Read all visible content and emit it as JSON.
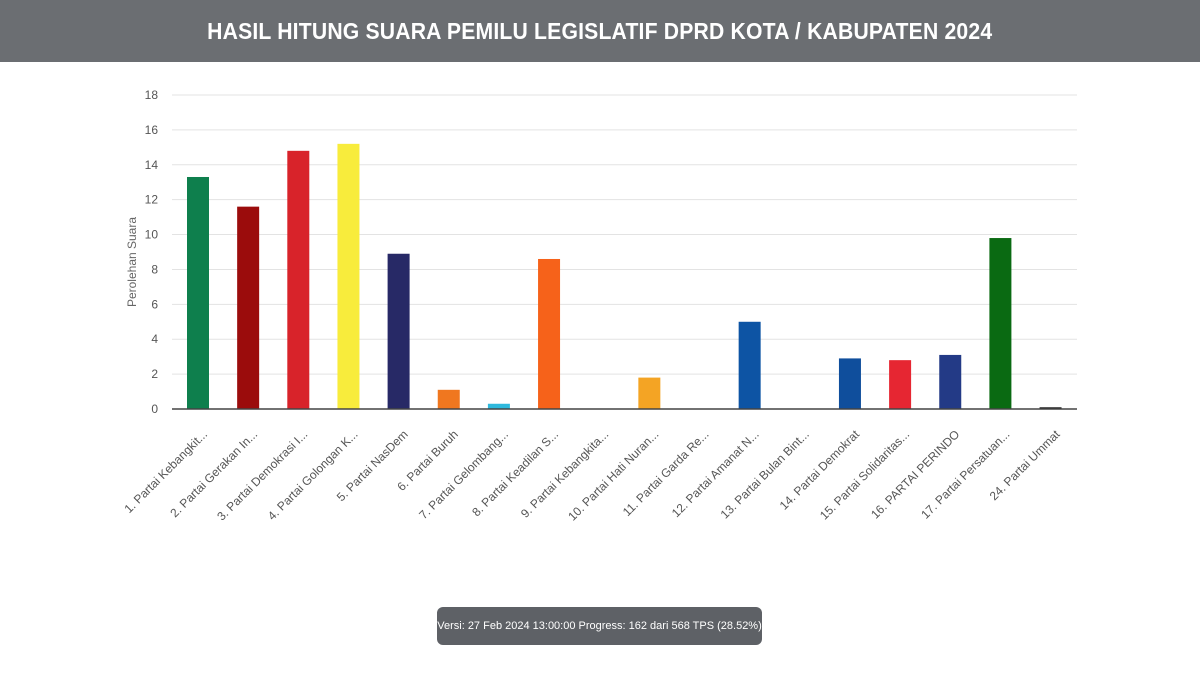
{
  "header": {
    "title": "HASIL HITUNG SUARA PEMILU LEGISLATIF DPRD KOTA / KABUPATEN 2024"
  },
  "footer": {
    "version_text": "Versi: 27 Feb 2024 13:00:00 Progress: 162 dari 568 TPS (28.52%)"
  },
  "chart_data": {
    "type": "bar",
    "title": "",
    "xlabel": "",
    "ylabel": "Perolehan Suara",
    "ylim": [
      0,
      18
    ],
    "yticks": [
      0,
      2,
      4,
      6,
      8,
      10,
      12,
      14,
      16,
      18
    ],
    "grid": true,
    "legend": "none",
    "categories": [
      "1. Partai Kebangkit...",
      "2. Partai Gerakan In...",
      "3. Partai Demokrasi I...",
      "4. Partai Golongan K...",
      "5. Partai NasDem",
      "6. Partai Buruh",
      "7. Partai Gelombang...",
      "8. Partai Keadilan S...",
      "9. Partai Kebangkita...",
      "10. Partai Hati Nuran...",
      "11. Partai Garda Re...",
      "12. Partai Amanat N...",
      "13. Partai Bulan Bint...",
      "14. Partai Demokrat",
      "15. Partai Solidaritas...",
      "16. PARTAI PERINDO",
      "17. Partai Persatuan...",
      "24. Partai Ummat"
    ],
    "values": [
      13.3,
      11.6,
      14.8,
      15.2,
      8.9,
      1.1,
      0.3,
      8.6,
      0,
      1.8,
      0,
      5.0,
      0,
      2.9,
      2.8,
      3.1,
      9.8,
      0.1
    ],
    "colors": [
      "#0e7f4d",
      "#9b0c0c",
      "#d8232a",
      "#f8ec3c",
      "#272966",
      "#f0771f",
      "#2fb9dd",
      "#f6621a",
      "#1a7f3c",
      "#f4a424",
      "#d0211f",
      "#0d54a4",
      "#1b7a3a",
      "#0f4e9c",
      "#e62632",
      "#233a86",
      "#0a6a12",
      "#222222"
    ]
  }
}
